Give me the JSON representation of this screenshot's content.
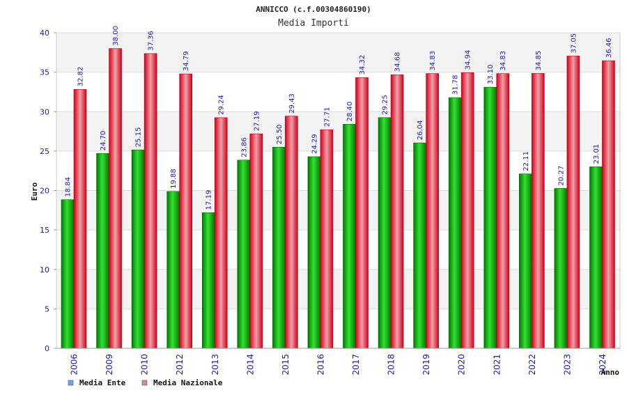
{
  "chart_data": {
    "type": "bar",
    "title": "ANNICCO (c.f.00304860190)",
    "subtitle": "Media Importi",
    "xlabel": "Anno",
    "ylabel": "Euro",
    "ylim": [
      0,
      40
    ],
    "yticks": [
      0,
      5,
      10,
      15,
      20,
      25,
      30,
      35,
      40
    ],
    "grid": true,
    "legend_position": "bottom-left",
    "categories": [
      "2006",
      "2009",
      "2010",
      "2012",
      "2013",
      "2014",
      "2015",
      "2016",
      "2017",
      "2018",
      "2019",
      "2020",
      "2021",
      "2022",
      "2023",
      "2024"
    ],
    "series": [
      {
        "name": "Media Ente",
        "color": "#00b400",
        "legend_color": "#6aa6e8",
        "values": [
          18.84,
          24.7,
          25.15,
          19.88,
          17.19,
          23.86,
          25.5,
          24.29,
          28.4,
          29.25,
          26.04,
          31.78,
          33.1,
          22.11,
          20.27,
          23.01
        ],
        "labels": [
          "18.84",
          "24.70",
          "25.15",
          "19.88",
          "17.19",
          "23.86",
          "25.50",
          "24.29",
          "28.40",
          "29.25",
          "26.04",
          "31.78",
          "33.10",
          "22.11",
          "20.27",
          "23.01"
        ]
      },
      {
        "name": "Media Nazionale",
        "color": "#e8001e",
        "legend_color": "#d488a8",
        "values": [
          32.82,
          38.0,
          37.36,
          34.79,
          29.24,
          27.19,
          29.43,
          27.71,
          34.32,
          34.68,
          34.83,
          34.94,
          34.83,
          34.85,
          37.05,
          36.46
        ],
        "labels": [
          "32.82",
          "38.00",
          "37.36",
          "34.79",
          "29.24",
          "27.19",
          "29.43",
          "27.71",
          "34.32",
          "34.68",
          "34.83",
          "34.94",
          "34.83",
          "34.85",
          "37.05",
          "36.46"
        ]
      }
    ]
  }
}
